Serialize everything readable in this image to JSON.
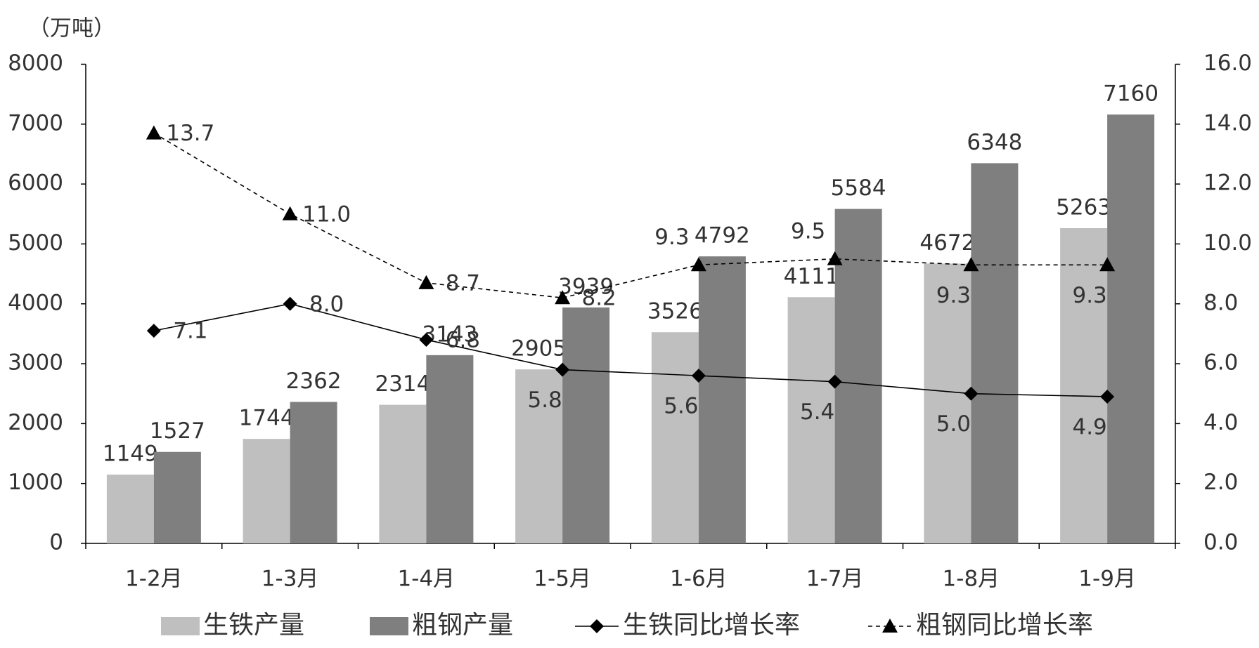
{
  "chart_data": {
    "type": "bar",
    "unit_label": "（万吨）",
    "categories": [
      "1-2月",
      "1-3月",
      "1-4月",
      "1-5月",
      "1-6月",
      "1-7月",
      "1-8月",
      "1-9月"
    ],
    "series": [
      {
        "name": "生铁产量",
        "type": "bar",
        "color": "#bfbfbf",
        "values": [
          1149,
          1744,
          2314,
          2905,
          3526,
          4111,
          4672,
          5263
        ]
      },
      {
        "name": "粗钢产量",
        "type": "bar",
        "color": "#7f7f7f",
        "values": [
          1527,
          2362,
          3143,
          3939,
          4792,
          5584,
          6348,
          7160
        ]
      },
      {
        "name": "生铁同比增长率",
        "type": "line",
        "axis": "y2",
        "color": "#000000",
        "marker": "diamond",
        "dashed": false,
        "values": [
          7.1,
          8.0,
          6.8,
          5.8,
          5.6,
          5.4,
          5.0,
          4.9
        ],
        "value_labels": [
          "7.1",
          "8.0",
          "6.8",
          "5.8",
          "5.6",
          "5.4",
          "5.0",
          "4.9"
        ]
      },
      {
        "name": "粗钢同比增长率",
        "type": "line",
        "axis": "y2",
        "color": "#000000",
        "marker": "triangle",
        "dashed": true,
        "values": [
          13.7,
          11.0,
          8.7,
          8.2,
          9.3,
          9.5,
          9.3,
          9.3
        ],
        "value_labels": [
          "13.7",
          "11.0",
          "8.7",
          "8.2",
          "9.3",
          "9.5",
          "9.3",
          "9.3"
        ]
      }
    ],
    "ylim": [
      0,
      8000
    ],
    "yticks": [
      0,
      1000,
      2000,
      3000,
      4000,
      5000,
      6000,
      7000,
      8000
    ],
    "y2lim": [
      0,
      16
    ],
    "y2ticks": [
      {
        "value": 0,
        "label": "0.0"
      },
      {
        "value": 2,
        "label": "2.0"
      },
      {
        "value": 4,
        "label": "4.0"
      },
      {
        "value": 6,
        "label": "6.0"
      },
      {
        "value": 8,
        "label": "8.0"
      },
      {
        "value": 10,
        "label": "10.0"
      },
      {
        "value": 12,
        "label": "12.0"
      },
      {
        "value": 14,
        "label": "14.0"
      },
      {
        "value": 16,
        "label": "16.0"
      }
    ]
  }
}
